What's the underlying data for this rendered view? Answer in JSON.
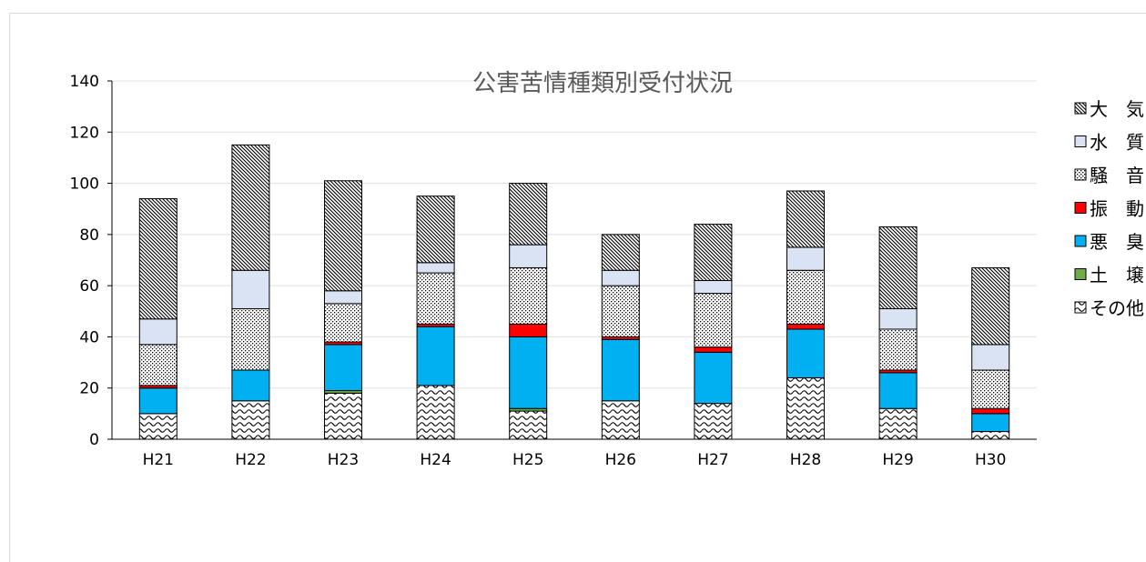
{
  "chart_data": {
    "type": "bar",
    "stacked": true,
    "title": "公害苦情種類別受付状況",
    "xlabel": "",
    "ylabel": "",
    "ylim": [
      0,
      140
    ],
    "yticks": [
      0,
      20,
      40,
      60,
      80,
      100,
      120,
      140
    ],
    "grid": true,
    "legend_position": "right",
    "categories": [
      "H21",
      "H22",
      "H23",
      "H24",
      "H25",
      "H26",
      "H27",
      "H28",
      "H29",
      "H30"
    ],
    "series": [
      {
        "name": "その他",
        "pattern": "wave",
        "color": "#000000",
        "values": [
          10,
          15,
          18,
          21,
          11,
          15,
          14,
          24,
          12,
          3
        ]
      },
      {
        "name": "土　壌",
        "pattern": "solid",
        "color": "#70ad47",
        "values": [
          0,
          0,
          1,
          0,
          1,
          0,
          0,
          0,
          0,
          0
        ]
      },
      {
        "name": "悪　臭",
        "pattern": "solid",
        "color": "#00b0f0",
        "values": [
          10,
          12,
          18,
          23,
          28,
          24,
          20,
          19,
          14,
          7
        ]
      },
      {
        "name": "振　動",
        "pattern": "solid",
        "color": "#ff0000",
        "values": [
          1,
          0,
          1,
          1,
          5,
          1,
          2,
          2,
          1,
          2
        ]
      },
      {
        "name": "騒　音",
        "pattern": "dots",
        "color": "#000000",
        "values": [
          16,
          24,
          15,
          20,
          22,
          20,
          21,
          21,
          16,
          15
        ]
      },
      {
        "name": "水　質",
        "pattern": "light",
        "color": "#dae3f3",
        "values": [
          10,
          15,
          5,
          4,
          9,
          6,
          5,
          9,
          8,
          10
        ]
      },
      {
        "name": "大　気",
        "pattern": "diagonal",
        "color": "#000000",
        "values": [
          47,
          49,
          43,
          26,
          24,
          14,
          22,
          22,
          32,
          30
        ]
      }
    ],
    "legend_order": [
      "大　気",
      "水　質",
      "騒　音",
      "振　動",
      "悪　臭",
      "土　壌",
      "その他"
    ]
  }
}
